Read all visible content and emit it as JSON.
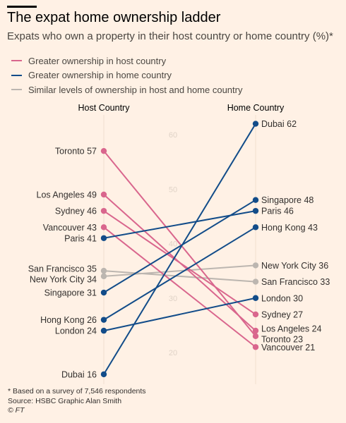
{
  "header": {
    "title": "The expat home ownership ladder",
    "subtitle": "Expats who own a property in their host country or home country (%)*"
  },
  "legend": {
    "items": [
      {
        "label": "Greater ownership in host country",
        "color": "#d9668d"
      },
      {
        "label": "Greater ownership in home country",
        "color": "#124c89"
      },
      {
        "label": "Similar levels of ownership in host and home country",
        "color": "#bcb6b0"
      }
    ]
  },
  "footer": {
    "note": "* Based on a survey of 7,546 respondents",
    "source": "Source: HSBC   Graphic Alan Smith",
    "credit": "© FT"
  },
  "chart_data": {
    "type": "slope",
    "x_categories": [
      "Host Country",
      "Home Country"
    ],
    "ylim": [
      16,
      62
    ],
    "yticks": [
      20,
      30,
      40,
      50,
      60
    ],
    "grid": false,
    "legend_position": "top-left",
    "series": [
      {
        "name": "Toronto",
        "host": 57,
        "home": 23,
        "group": "host"
      },
      {
        "name": "Los Angeles",
        "host": 49,
        "home": 24,
        "group": "host"
      },
      {
        "name": "Sydney",
        "host": 46,
        "home": 27,
        "group": "host"
      },
      {
        "name": "Vancouver",
        "host": 43,
        "home": 21,
        "group": "host"
      },
      {
        "name": "Paris",
        "host": 41,
        "home": 46,
        "group": "home"
      },
      {
        "name": "San Francisco",
        "host": 35,
        "home": 33,
        "group": "similar"
      },
      {
        "name": "New York City",
        "host": 34,
        "home": 36,
        "group": "similar"
      },
      {
        "name": "Singapore",
        "host": 31,
        "home": 48,
        "group": "home"
      },
      {
        "name": "Hong Kong",
        "host": 26,
        "home": 43,
        "group": "home"
      },
      {
        "name": "London",
        "host": 24,
        "home": 30,
        "group": "home"
      },
      {
        "name": "Dubai",
        "host": 16,
        "home": 62,
        "group": "home"
      }
    ],
    "group_colors": {
      "host": "#d9668d",
      "home": "#124c89",
      "similar": "#bcb6b0"
    }
  }
}
